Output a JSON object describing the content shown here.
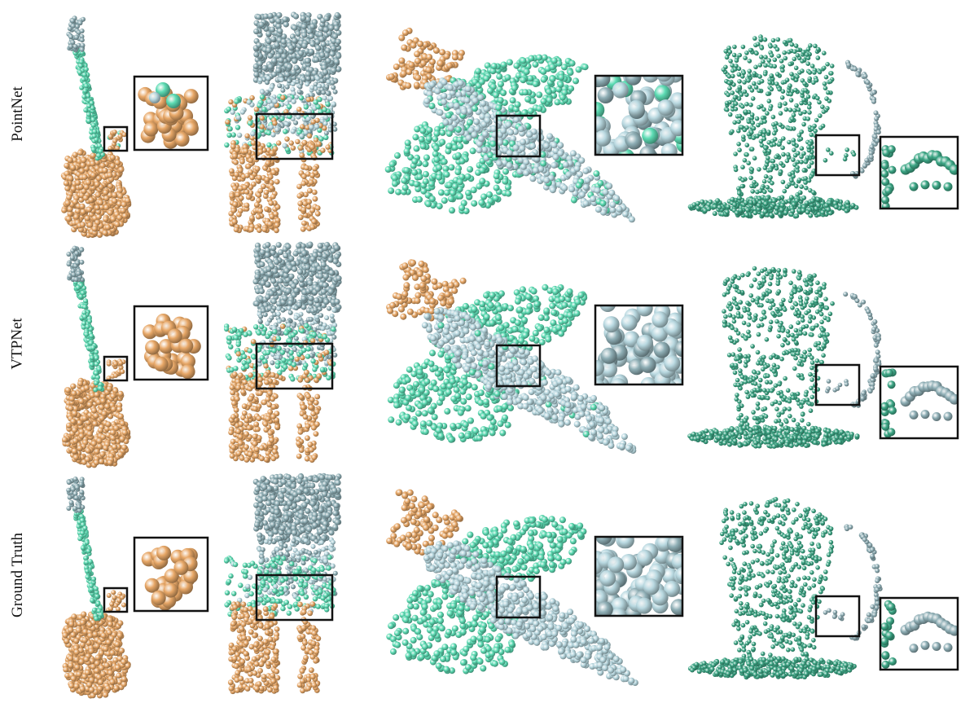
{
  "figure": {
    "rows": [
      {
        "label": "PointNet",
        "variant": "pointnet"
      },
      {
        "label": "VTPNet",
        "variant": "vtpnet"
      },
      {
        "label": "Ground Truth",
        "variant": "gt"
      }
    ],
    "objects": [
      "guitar",
      "table",
      "airplane",
      "mug"
    ],
    "part_colors": {
      "orange": "#E8A868",
      "mint": "#5DDCB4",
      "light_blue": "#B8D8E0",
      "slate": "#8FAFB6",
      "teal": "#3EA887",
      "frame": "#111111"
    }
  }
}
